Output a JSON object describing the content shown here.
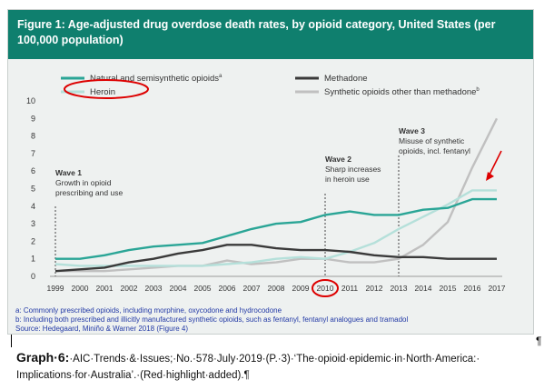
{
  "chart_data": {
    "type": "line",
    "title": "Figure 1: Age-adjusted drug overdose death rates, by opioid category, United States (per 100,000 population)",
    "categories": [
      "1999",
      "2000",
      "2001",
      "2002",
      "2003",
      "2004",
      "2005",
      "2006",
      "2007",
      "2008",
      "2009",
      "2010",
      "2011",
      "2012",
      "2013",
      "2014",
      "2015",
      "2016",
      "2017"
    ],
    "ylim": [
      0,
      10
    ],
    "yticks": [
      "0",
      "1",
      "2",
      "3",
      "4",
      "5",
      "6",
      "7",
      "8",
      "9",
      "10"
    ],
    "grid": false,
    "legend_position": "top",
    "series": [
      {
        "name": "Natural and semisynthetic opioids",
        "name_suffix": "a",
        "color": "#2aa596",
        "values": [
          1.0,
          1.0,
          1.2,
          1.5,
          1.7,
          1.8,
          1.9,
          2.3,
          2.7,
          3.0,
          3.1,
          3.5,
          3.7,
          3.5,
          3.5,
          3.8,
          3.9,
          4.4,
          4.4
        ]
      },
      {
        "name": "Methadone",
        "color": "#3a3a3a",
        "values": [
          0.3,
          0.4,
          0.5,
          0.8,
          1.0,
          1.3,
          1.5,
          1.8,
          1.8,
          1.6,
          1.5,
          1.5,
          1.4,
          1.2,
          1.1,
          1.1,
          1.0,
          1.0,
          1.0
        ]
      },
      {
        "name": "Heroin",
        "color": "#b5e0da",
        "values": [
          0.7,
          0.6,
          0.6,
          0.6,
          0.6,
          0.6,
          0.6,
          0.7,
          0.8,
          1.0,
          1.1,
          1.0,
          1.4,
          1.9,
          2.7,
          3.4,
          4.1,
          4.9,
          4.9
        ]
      },
      {
        "name": "Synthetic opioids other than methadone",
        "name_suffix": "b",
        "color": "#c0c0c0",
        "values": [
          0.3,
          0.3,
          0.3,
          0.4,
          0.5,
          0.6,
          0.6,
          0.9,
          0.7,
          0.8,
          1.0,
          1.0,
          0.8,
          0.8,
          1.0,
          1.8,
          3.1,
          6.2,
          9.0
        ]
      }
    ],
    "annotations": [
      {
        "head": "Wave 1",
        "lines": [
          "Growth in opioid",
          "prescribing and use"
        ],
        "x": "1999"
      },
      {
        "head": "Wave 2",
        "lines": [
          "Sharp increases",
          "in heroin use"
        ],
        "x": "2010"
      },
      {
        "head": "Wave 3",
        "lines": [
          "Misuse of synthetic",
          "opioids, incl. fentanyl"
        ],
        "x": "2013"
      }
    ],
    "highlight": {
      "legend_item": "Heroin",
      "x_label": "2010",
      "arrow_at": "2017",
      "color": "#dd0000"
    }
  },
  "footnotes": {
    "a": "a: Commonly prescribed opioids, including morphine, oxycodone and hydrocodone",
    "b": "b: Including both prescribed and illicitly manufactured synthetic opioids, such as fentanyl, fentanyl analogues and tramadol",
    "source": "Source: Hedegaard, Miniño & Warner 2018 (Figure 4)"
  },
  "caption": {
    "label": "Graph·6:",
    "line1": "·AIC·Trends·&·Issues;·No.·578·July·2019·(P.·3)·‘The·opioid·epidemic·in·North·America:·",
    "line2": "Implications·for·Australia’.·(Red·highlight·added).¶",
    "pilcrow": "¶"
  }
}
